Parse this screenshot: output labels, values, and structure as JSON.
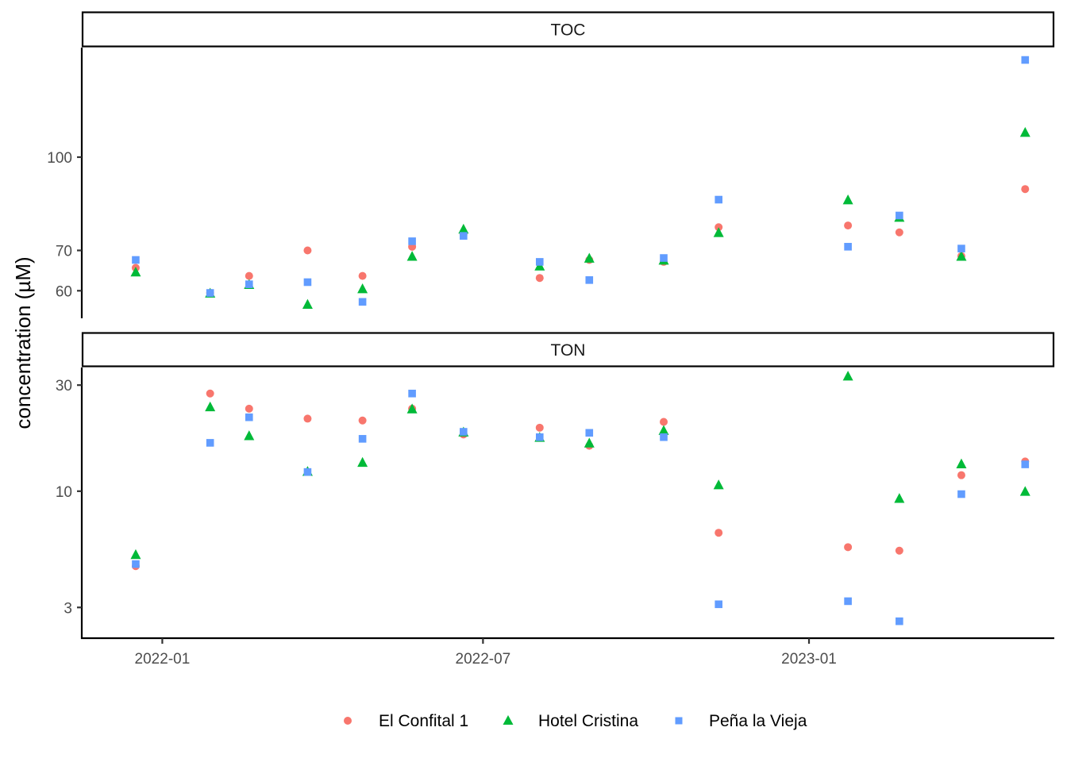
{
  "chart_data": {
    "type": "scatter",
    "facets": [
      "TOC",
      "TON"
    ],
    "ylabel": "concentration (µM)",
    "xlabel": "",
    "x_ticks": [
      "2022-01-01",
      "2022-07-01",
      "2023-01-01"
    ],
    "x_tick_labels": [
      "2022-01",
      "2022-07",
      "2023-01"
    ],
    "x_range": [
      "2021-11-17",
      "2023-05-19"
    ],
    "y_scale": "log",
    "grid": false,
    "legend_position": "bottom",
    "panels": {
      "TOC": {
        "y_ticks": [
          60,
          70,
          100
        ],
        "y_tick_labels": [
          "60",
          "70",
          "100"
        ],
        "ylim": [
          54,
          152
        ]
      },
      "TON": {
        "y_ticks": [
          3,
          10,
          30
        ],
        "y_tick_labels": [
          "3",
          "10",
          "30"
        ],
        "ylim": [
          2.2,
          36
        ]
      }
    },
    "series": [
      {
        "name": "El Confital 1",
        "color": "#F8766D",
        "shape": "circle",
        "TOC": [
          {
            "x": "2021-12-17",
            "y": 65.5
          },
          {
            "x": "2022-01-28",
            "y": 59.5
          },
          {
            "x": "2022-02-19",
            "y": 63.5
          },
          {
            "x": "2022-03-24",
            "y": 70.0
          },
          {
            "x": "2022-04-24",
            "y": 63.5
          },
          {
            "x": "2022-05-22",
            "y": 71.0
          },
          {
            "x": "2022-06-20",
            "y": 74.5
          },
          {
            "x": "2022-08-02",
            "y": 63.0
          },
          {
            "x": "2022-08-30",
            "y": 67.5
          },
          {
            "x": "2022-10-11",
            "y": 67.0
          },
          {
            "x": "2022-11-11",
            "y": 76.5
          },
          {
            "x": "2023-01-23",
            "y": 77.0
          },
          {
            "x": "2023-02-21",
            "y": 75.0
          },
          {
            "x": "2023-03-28",
            "y": 68.5
          },
          {
            "x": "2023-05-03",
            "y": 88.5
          }
        ],
        "TON": [
          {
            "x": "2021-12-17",
            "y": 4.6
          },
          {
            "x": "2022-01-28",
            "y": 27.5
          },
          {
            "x": "2022-02-19",
            "y": 23.5
          },
          {
            "x": "2022-03-24",
            "y": 21.2
          },
          {
            "x": "2022-04-24",
            "y": 20.8
          },
          {
            "x": "2022-05-22",
            "y": 23.5
          },
          {
            "x": "2022-06-20",
            "y": 18.0
          },
          {
            "x": "2022-08-02",
            "y": 19.3
          },
          {
            "x": "2022-08-30",
            "y": 16.0
          },
          {
            "x": "2022-10-11",
            "y": 20.5
          },
          {
            "x": "2022-11-11",
            "y": 6.5
          },
          {
            "x": "2023-01-23",
            "y": 5.6
          },
          {
            "x": "2023-02-21",
            "y": 5.4
          },
          {
            "x": "2023-03-28",
            "y": 11.8
          },
          {
            "x": "2023-05-03",
            "y": 13.6
          }
        ]
      },
      {
        "name": "Hotel Cristina",
        "color": "#00BA38",
        "shape": "triangle",
        "TOC": [
          {
            "x": "2021-12-17",
            "y": 64.5
          },
          {
            "x": "2022-01-28",
            "y": 59.5
          },
          {
            "x": "2022-02-19",
            "y": 61.5
          },
          {
            "x": "2022-03-24",
            "y": 57.0
          },
          {
            "x": "2022-04-24",
            "y": 60.5
          },
          {
            "x": "2022-05-22",
            "y": 68.5
          },
          {
            "x": "2022-06-20",
            "y": 76.0
          },
          {
            "x": "2022-08-02",
            "y": 66.0
          },
          {
            "x": "2022-08-30",
            "y": 68.0
          },
          {
            "x": "2022-10-11",
            "y": 67.5
          },
          {
            "x": "2022-11-11",
            "y": 75.0
          },
          {
            "x": "2023-01-23",
            "y": 85.0
          },
          {
            "x": "2023-02-21",
            "y": 79.5
          },
          {
            "x": "2023-03-28",
            "y": 68.5
          },
          {
            "x": "2023-05-03",
            "y": 110.0
          }
        ],
        "TON": [
          {
            "x": "2021-12-17",
            "y": 5.2
          },
          {
            "x": "2022-01-28",
            "y": 24.0
          },
          {
            "x": "2022-02-19",
            "y": 17.8
          },
          {
            "x": "2022-03-24",
            "y": 12.3
          },
          {
            "x": "2022-04-24",
            "y": 13.5
          },
          {
            "x": "2022-05-22",
            "y": 23.5
          },
          {
            "x": "2022-06-20",
            "y": 18.5
          },
          {
            "x": "2022-08-02",
            "y": 17.5
          },
          {
            "x": "2022-08-30",
            "y": 16.5
          },
          {
            "x": "2022-10-11",
            "y": 18.8
          },
          {
            "x": "2022-11-11",
            "y": 10.7
          },
          {
            "x": "2023-01-23",
            "y": 33.0
          },
          {
            "x": "2023-02-21",
            "y": 9.3
          },
          {
            "x": "2023-03-28",
            "y": 13.3
          },
          {
            "x": "2023-05-03",
            "y": 10.0
          }
        ]
      },
      {
        "name": "Peña la Vieja",
        "color": "#619CFF",
        "shape": "square",
        "TOC": [
          {
            "x": "2021-12-17",
            "y": 67.5
          },
          {
            "x": "2022-01-28",
            "y": 59.5
          },
          {
            "x": "2022-02-19",
            "y": 61.5
          },
          {
            "x": "2022-03-24",
            "y": 62.0
          },
          {
            "x": "2022-04-24",
            "y": 57.5
          },
          {
            "x": "2022-05-22",
            "y": 72.5
          },
          {
            "x": "2022-06-20",
            "y": 74.0
          },
          {
            "x": "2022-08-02",
            "y": 67.0
          },
          {
            "x": "2022-08-30",
            "y": 62.5
          },
          {
            "x": "2022-10-11",
            "y": 68.0
          },
          {
            "x": "2022-11-11",
            "y": 85.0
          },
          {
            "x": "2023-01-23",
            "y": 71.0
          },
          {
            "x": "2023-02-21",
            "y": 80.0
          },
          {
            "x": "2023-03-28",
            "y": 70.5
          },
          {
            "x": "2023-05-03",
            "y": 145.0
          }
        ],
        "TON": [
          {
            "x": "2021-12-17",
            "y": 4.7
          },
          {
            "x": "2022-01-28",
            "y": 16.5
          },
          {
            "x": "2022-02-19",
            "y": 21.5
          },
          {
            "x": "2022-03-24",
            "y": 12.2
          },
          {
            "x": "2022-04-24",
            "y": 17.2
          },
          {
            "x": "2022-05-22",
            "y": 27.5
          },
          {
            "x": "2022-06-20",
            "y": 18.5
          },
          {
            "x": "2022-08-02",
            "y": 17.5
          },
          {
            "x": "2022-08-30",
            "y": 18.3
          },
          {
            "x": "2022-10-11",
            "y": 17.5
          },
          {
            "x": "2022-11-11",
            "y": 3.1
          },
          {
            "x": "2023-01-23",
            "y": 3.2
          },
          {
            "x": "2023-02-21",
            "y": 2.6
          },
          {
            "x": "2023-03-28",
            "y": 9.7
          },
          {
            "x": "2023-05-03",
            "y": 13.2
          }
        ]
      }
    ]
  }
}
